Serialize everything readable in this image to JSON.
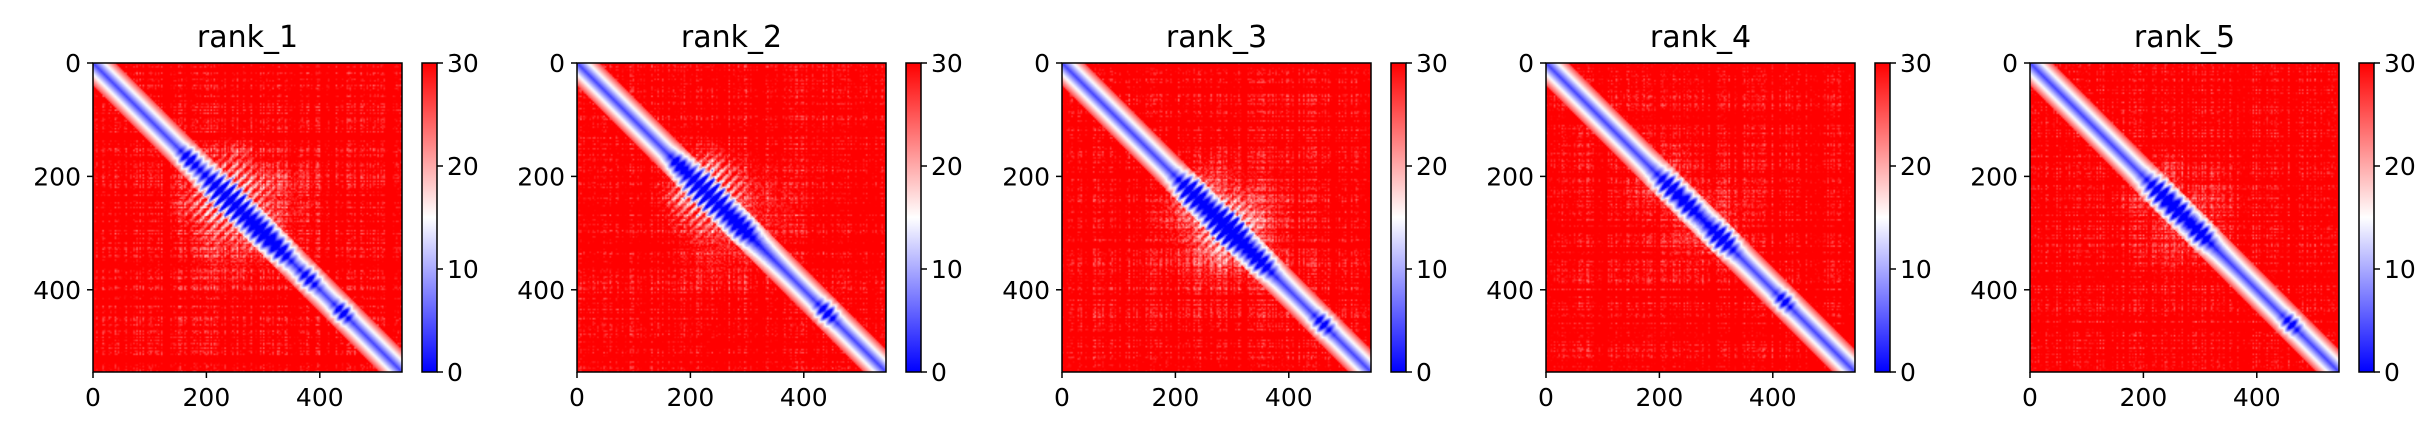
{
  "chart_data": [
    {
      "type": "heatmap",
      "title": "rank_1",
      "n": 545,
      "xlim": [
        0,
        545
      ],
      "ylim": [
        545,
        0
      ],
      "xticks": [
        0,
        200,
        400
      ],
      "yticks": [
        0,
        200,
        400
      ],
      "colorbar": {
        "range": [
          0,
          30
        ],
        "ticks": [
          0,
          10,
          20,
          30
        ],
        "colormap": [
          "#0000ff",
          "#ffffff",
          "#ff0000"
        ]
      },
      "diagonal_contacts": [
        {
          "center": [
            240,
            240
          ],
          "size": 60,
          "strength": 0.9
        },
        {
          "center": [
            170,
            170
          ],
          "size": 18,
          "strength": 0.6
        },
        {
          "center": [
            300,
            300
          ],
          "size": 28,
          "strength": 0.7
        },
        {
          "center": [
            330,
            330
          ],
          "size": 24,
          "strength": 0.6
        },
        {
          "center": [
            380,
            380
          ],
          "size": 20,
          "strength": 0.5
        },
        {
          "center": [
            440,
            440
          ],
          "size": 16,
          "strength": 0.6
        }
      ],
      "offdiag_blobs": [
        {
          "center": [
            340,
            240
          ],
          "size": 70,
          "strength": 0.35
        },
        {
          "center": [
            250,
            160
          ],
          "size": 30,
          "strength": 0.3
        }
      ]
    },
    {
      "type": "heatmap",
      "title": "rank_2",
      "n": 545,
      "xlim": [
        0,
        545
      ],
      "ylim": [
        545,
        0
      ],
      "xticks": [
        0,
        200,
        400
      ],
      "yticks": [
        0,
        200,
        400
      ],
      "colorbar": {
        "range": [
          0,
          30
        ],
        "ticks": [
          0,
          10,
          20,
          30
        ],
        "colormap": [
          "#0000ff",
          "#ffffff",
          "#ff0000"
        ]
      },
      "diagonal_contacts": [
        {
          "center": [
            230,
            230
          ],
          "size": 55,
          "strength": 0.9
        },
        {
          "center": [
            180,
            180
          ],
          "size": 18,
          "strength": 0.6
        },
        {
          "center": [
            290,
            290
          ],
          "size": 24,
          "strength": 0.6
        },
        {
          "center": [
            440,
            440
          ],
          "size": 18,
          "strength": 0.6
        }
      ],
      "offdiag_blobs": [
        {
          "center": [
            330,
            250
          ],
          "size": 70,
          "strength": 0.35
        },
        {
          "center": [
            240,
            180
          ],
          "size": 30,
          "strength": 0.35
        }
      ]
    },
    {
      "type": "heatmap",
      "title": "rank_3",
      "n": 545,
      "xlim": [
        0,
        545
      ],
      "ylim": [
        545,
        0
      ],
      "xticks": [
        0,
        200,
        400
      ],
      "yticks": [
        0,
        200,
        400
      ],
      "colorbar": {
        "range": [
          0,
          30
        ],
        "ticks": [
          0,
          10,
          20,
          30
        ],
        "colormap": [
          "#0000ff",
          "#ffffff",
          "#ff0000"
        ]
      },
      "diagonal_contacts": [
        {
          "center": [
            230,
            230
          ],
          "size": 30,
          "strength": 0.9
        },
        {
          "center": [
            290,
            290
          ],
          "size": 45,
          "strength": 0.9
        },
        {
          "center": [
            350,
            350
          ],
          "size": 24,
          "strength": 0.6
        },
        {
          "center": [
            460,
            460
          ],
          "size": 18,
          "strength": 0.5
        }
      ],
      "offdiag_blobs": [
        {
          "center": [
            330,
            270
          ],
          "size": 80,
          "strength": 0.4
        },
        {
          "center": [
            270,
            200
          ],
          "size": 35,
          "strength": 0.3
        }
      ]
    },
    {
      "type": "heatmap",
      "title": "rank_4",
      "n": 545,
      "xlim": [
        0,
        545
      ],
      "ylim": [
        545,
        0
      ],
      "xticks": [
        0,
        200,
        400
      ],
      "yticks": [
        0,
        200,
        400
      ],
      "colorbar": {
        "range": [
          0,
          30
        ],
        "ticks": [
          0,
          10,
          20,
          30
        ],
        "colormap": [
          "#0000ff",
          "#ffffff",
          "#ff0000"
        ]
      },
      "diagonal_contacts": [
        {
          "center": [
            220,
            220
          ],
          "size": 26,
          "strength": 0.7
        },
        {
          "center": [
            250,
            250
          ],
          "size": 22,
          "strength": 0.6
        },
        {
          "center": [
            310,
            310
          ],
          "size": 26,
          "strength": 0.7
        },
        {
          "center": [
            420,
            420
          ],
          "size": 16,
          "strength": 0.5
        }
      ],
      "offdiag_blobs": [
        {
          "center": [
            310,
            250
          ],
          "size": 60,
          "strength": 0.3
        },
        {
          "center": [
            230,
            170
          ],
          "size": 30,
          "strength": 0.25
        }
      ]
    },
    {
      "type": "heatmap",
      "title": "rank_5",
      "n": 545,
      "xlim": [
        0,
        545
      ],
      "ylim": [
        545,
        0
      ],
      "xticks": [
        0,
        200,
        400
      ],
      "yticks": [
        0,
        200,
        400
      ],
      "colorbar": {
        "range": [
          0,
          30
        ],
        "ticks": [
          0,
          10,
          20,
          30
        ],
        "colormap": [
          "#0000ff",
          "#ffffff",
          "#ff0000"
        ]
      },
      "diagonal_contacts": [
        {
          "center": [
            230,
            230
          ],
          "size": 28,
          "strength": 0.7
        },
        {
          "center": [
            260,
            260
          ],
          "size": 26,
          "strength": 0.7
        },
        {
          "center": [
            300,
            300
          ],
          "size": 22,
          "strength": 0.6
        },
        {
          "center": [
            460,
            460
          ],
          "size": 16,
          "strength": 0.5
        }
      ],
      "offdiag_blobs": [
        {
          "center": [
            320,
            250
          ],
          "size": 65,
          "strength": 0.3
        },
        {
          "center": [
            250,
            180
          ],
          "size": 30,
          "strength": 0.25
        }
      ]
    }
  ]
}
